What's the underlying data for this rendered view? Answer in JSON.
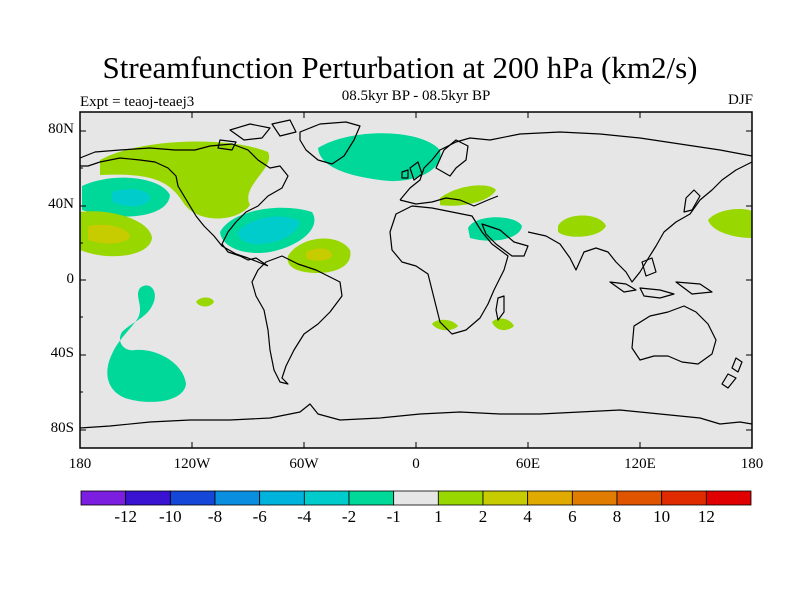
{
  "title": "Streamfunction Perturbation at 200 hPa (km2/s)",
  "experiment_label": "Expt = teaoj-teaej3",
  "period_label": "08.5kyr BP - 08.5kyr BP",
  "season_label": "DJF",
  "latitude_labels": [
    "80N",
    "40N",
    "0",
    "40S",
    "80S"
  ],
  "longitude_labels": [
    "180",
    "120W",
    "60W",
    "0",
    "60E",
    "120E",
    "180"
  ],
  "colorbar": {
    "labels": [
      "-12",
      "-10",
      "-8",
      "-6",
      "-4",
      "-2",
      "-1",
      "1",
      "2",
      "4",
      "6",
      "8",
      "10",
      "12"
    ],
    "colors": [
      "#7b1ee0",
      "#3a12d2",
      "#1446d8",
      "#0a8ee0",
      "#00b3dc",
      "#00cccc",
      "#00d89a",
      "#e6e6e6",
      "#99d700",
      "#c6cc00",
      "#e0aa00",
      "#e07c00",
      "#e05400",
      "#e02a00",
      "#e00000"
    ]
  },
  "colors": {
    "map_background": "#e6e6e6",
    "coastline": "#000000"
  }
}
